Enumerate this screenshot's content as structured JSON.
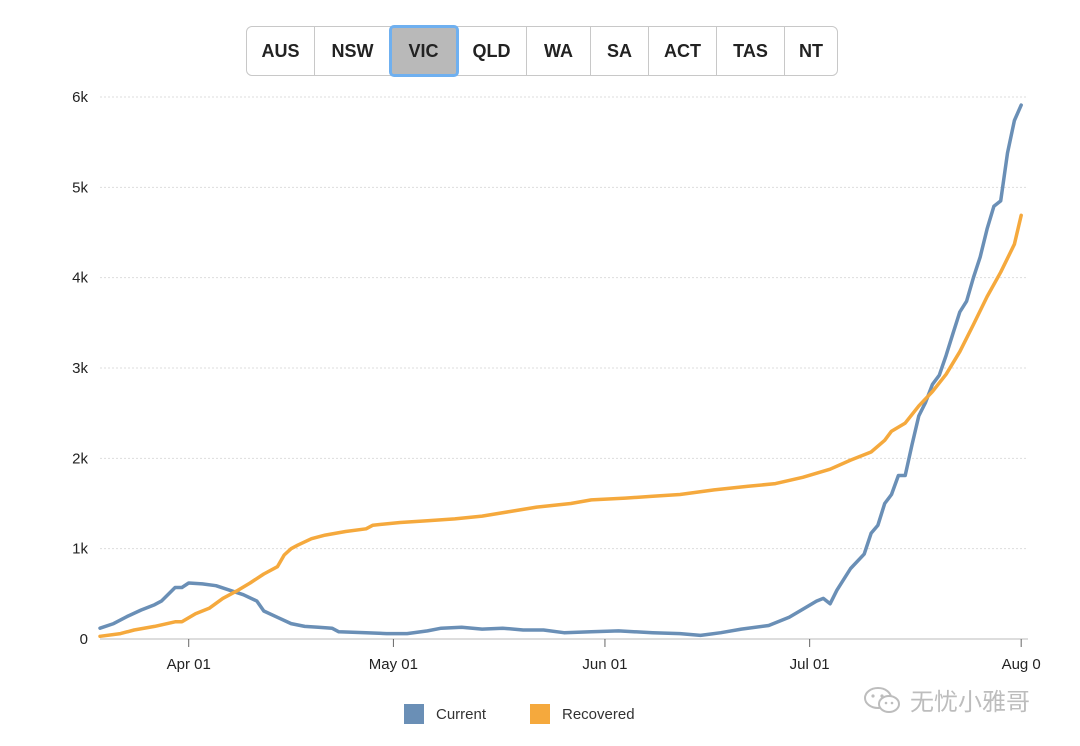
{
  "tabs": [
    {
      "label": "AUS",
      "width": 68
    },
    {
      "label": "NSW",
      "width": 76
    },
    {
      "label": "VIC",
      "width": 66,
      "active": true
    },
    {
      "label": "QLD",
      "width": 70
    },
    {
      "label": "WA",
      "width": 64
    },
    {
      "label": "SA",
      "width": 58
    },
    {
      "label": "ACT",
      "width": 68
    },
    {
      "label": "TAS",
      "width": 68
    },
    {
      "label": "NT",
      "width": 52
    }
  ],
  "watermark": {
    "text": "无忧小雅哥"
  },
  "chart_data": {
    "type": "line",
    "title": "",
    "xlabel": "",
    "ylabel": "",
    "x_ticks": [
      "Apr 01",
      "May 01",
      "Jun 01",
      "Jul 01",
      "Aug 0"
    ],
    "x_range": [
      "2020-03-19",
      "2020-08-02"
    ],
    "y_ticks": [
      "0",
      "1k",
      "2k",
      "3k",
      "4k",
      "5k",
      "6k"
    ],
    "ylim": [
      0,
      6000
    ],
    "grid": true,
    "legend_position": "bottom",
    "series": [
      {
        "name": "Current",
        "color": "#6a8fb6",
        "points": [
          [
            "2020-03-19",
            120
          ],
          [
            "2020-03-21",
            170
          ],
          [
            "2020-03-23",
            250
          ],
          [
            "2020-03-25",
            320
          ],
          [
            "2020-03-27",
            380
          ],
          [
            "2020-03-28",
            420
          ],
          [
            "2020-03-30",
            570
          ],
          [
            "2020-03-31",
            570
          ],
          [
            "2020-04-01",
            620
          ],
          [
            "2020-04-03",
            610
          ],
          [
            "2020-04-05",
            590
          ],
          [
            "2020-04-07",
            540
          ],
          [
            "2020-04-09",
            490
          ],
          [
            "2020-04-11",
            420
          ],
          [
            "2020-04-12",
            310
          ],
          [
            "2020-04-14",
            240
          ],
          [
            "2020-04-16",
            170
          ],
          [
            "2020-04-18",
            140
          ],
          [
            "2020-04-20",
            130
          ],
          [
            "2020-04-22",
            120
          ],
          [
            "2020-04-23",
            80
          ],
          [
            "2020-04-27",
            70
          ],
          [
            "2020-04-30",
            60
          ],
          [
            "2020-05-03",
            60
          ],
          [
            "2020-05-06",
            90
          ],
          [
            "2020-05-08",
            120
          ],
          [
            "2020-05-11",
            130
          ],
          [
            "2020-05-14",
            110
          ],
          [
            "2020-05-17",
            120
          ],
          [
            "2020-05-20",
            100
          ],
          [
            "2020-05-23",
            100
          ],
          [
            "2020-05-26",
            70
          ],
          [
            "2020-05-30",
            80
          ],
          [
            "2020-06-03",
            90
          ],
          [
            "2020-06-08",
            70
          ],
          [
            "2020-06-12",
            60
          ],
          [
            "2020-06-15",
            40
          ],
          [
            "2020-06-18",
            70
          ],
          [
            "2020-06-21",
            110
          ],
          [
            "2020-06-25",
            150
          ],
          [
            "2020-06-28",
            240
          ],
          [
            "2020-06-30",
            330
          ],
          [
            "2020-07-02",
            420
          ],
          [
            "2020-07-03",
            450
          ],
          [
            "2020-07-04",
            390
          ],
          [
            "2020-07-05",
            540
          ],
          [
            "2020-07-07",
            780
          ],
          [
            "2020-07-09",
            940
          ],
          [
            "2020-07-10",
            1170
          ],
          [
            "2020-07-11",
            1260
          ],
          [
            "2020-07-12",
            1500
          ],
          [
            "2020-07-13",
            1600
          ],
          [
            "2020-07-14",
            1810
          ],
          [
            "2020-07-15",
            1810
          ],
          [
            "2020-07-16",
            2150
          ],
          [
            "2020-07-17",
            2470
          ],
          [
            "2020-07-18",
            2620
          ],
          [
            "2020-07-19",
            2820
          ],
          [
            "2020-07-20",
            2920
          ],
          [
            "2020-07-21",
            3140
          ],
          [
            "2020-07-22",
            3380
          ],
          [
            "2020-07-23",
            3620
          ],
          [
            "2020-07-24",
            3740
          ],
          [
            "2020-07-25",
            4000
          ],
          [
            "2020-07-26",
            4230
          ],
          [
            "2020-07-27",
            4540
          ],
          [
            "2020-07-28",
            4790
          ],
          [
            "2020-07-29",
            4850
          ],
          [
            "2020-07-30",
            5380
          ],
          [
            "2020-07-31",
            5740
          ],
          [
            "2020-08-01",
            5910
          ]
        ]
      },
      {
        "name": "Recovered",
        "color": "#f5a93d",
        "points": [
          [
            "2020-03-19",
            30
          ],
          [
            "2020-03-22",
            60
          ],
          [
            "2020-03-24",
            100
          ],
          [
            "2020-03-27",
            140
          ],
          [
            "2020-03-30",
            190
          ],
          [
            "2020-03-31",
            190
          ],
          [
            "2020-04-02",
            280
          ],
          [
            "2020-04-04",
            340
          ],
          [
            "2020-04-06",
            450
          ],
          [
            "2020-04-08",
            530
          ],
          [
            "2020-04-10",
            620
          ],
          [
            "2020-04-12",
            720
          ],
          [
            "2020-04-14",
            800
          ],
          [
            "2020-04-15",
            930
          ],
          [
            "2020-04-16",
            1000
          ],
          [
            "2020-04-17",
            1040
          ],
          [
            "2020-04-19",
            1110
          ],
          [
            "2020-04-21",
            1150
          ],
          [
            "2020-04-24",
            1190
          ],
          [
            "2020-04-27",
            1220
          ],
          [
            "2020-04-28",
            1260
          ],
          [
            "2020-05-02",
            1290
          ],
          [
            "2020-05-06",
            1310
          ],
          [
            "2020-05-10",
            1330
          ],
          [
            "2020-05-14",
            1360
          ],
          [
            "2020-05-18",
            1410
          ],
          [
            "2020-05-22",
            1460
          ],
          [
            "2020-05-27",
            1500
          ],
          [
            "2020-05-30",
            1540
          ],
          [
            "2020-06-04",
            1560
          ],
          [
            "2020-06-08",
            1580
          ],
          [
            "2020-06-12",
            1600
          ],
          [
            "2020-06-17",
            1650
          ],
          [
            "2020-06-22",
            1690
          ],
          [
            "2020-06-26",
            1720
          ],
          [
            "2020-06-30",
            1790
          ],
          [
            "2020-07-04",
            1880
          ],
          [
            "2020-07-07",
            1980
          ],
          [
            "2020-07-10",
            2070
          ],
          [
            "2020-07-12",
            2200
          ],
          [
            "2020-07-13",
            2300
          ],
          [
            "2020-07-15",
            2390
          ],
          [
            "2020-07-17",
            2580
          ],
          [
            "2020-07-19",
            2740
          ],
          [
            "2020-07-21",
            2930
          ],
          [
            "2020-07-23",
            3180
          ],
          [
            "2020-07-25",
            3480
          ],
          [
            "2020-07-27",
            3790
          ],
          [
            "2020-07-29",
            4060
          ],
          [
            "2020-07-31",
            4370
          ],
          [
            "2020-08-01",
            4690
          ]
        ]
      }
    ]
  }
}
